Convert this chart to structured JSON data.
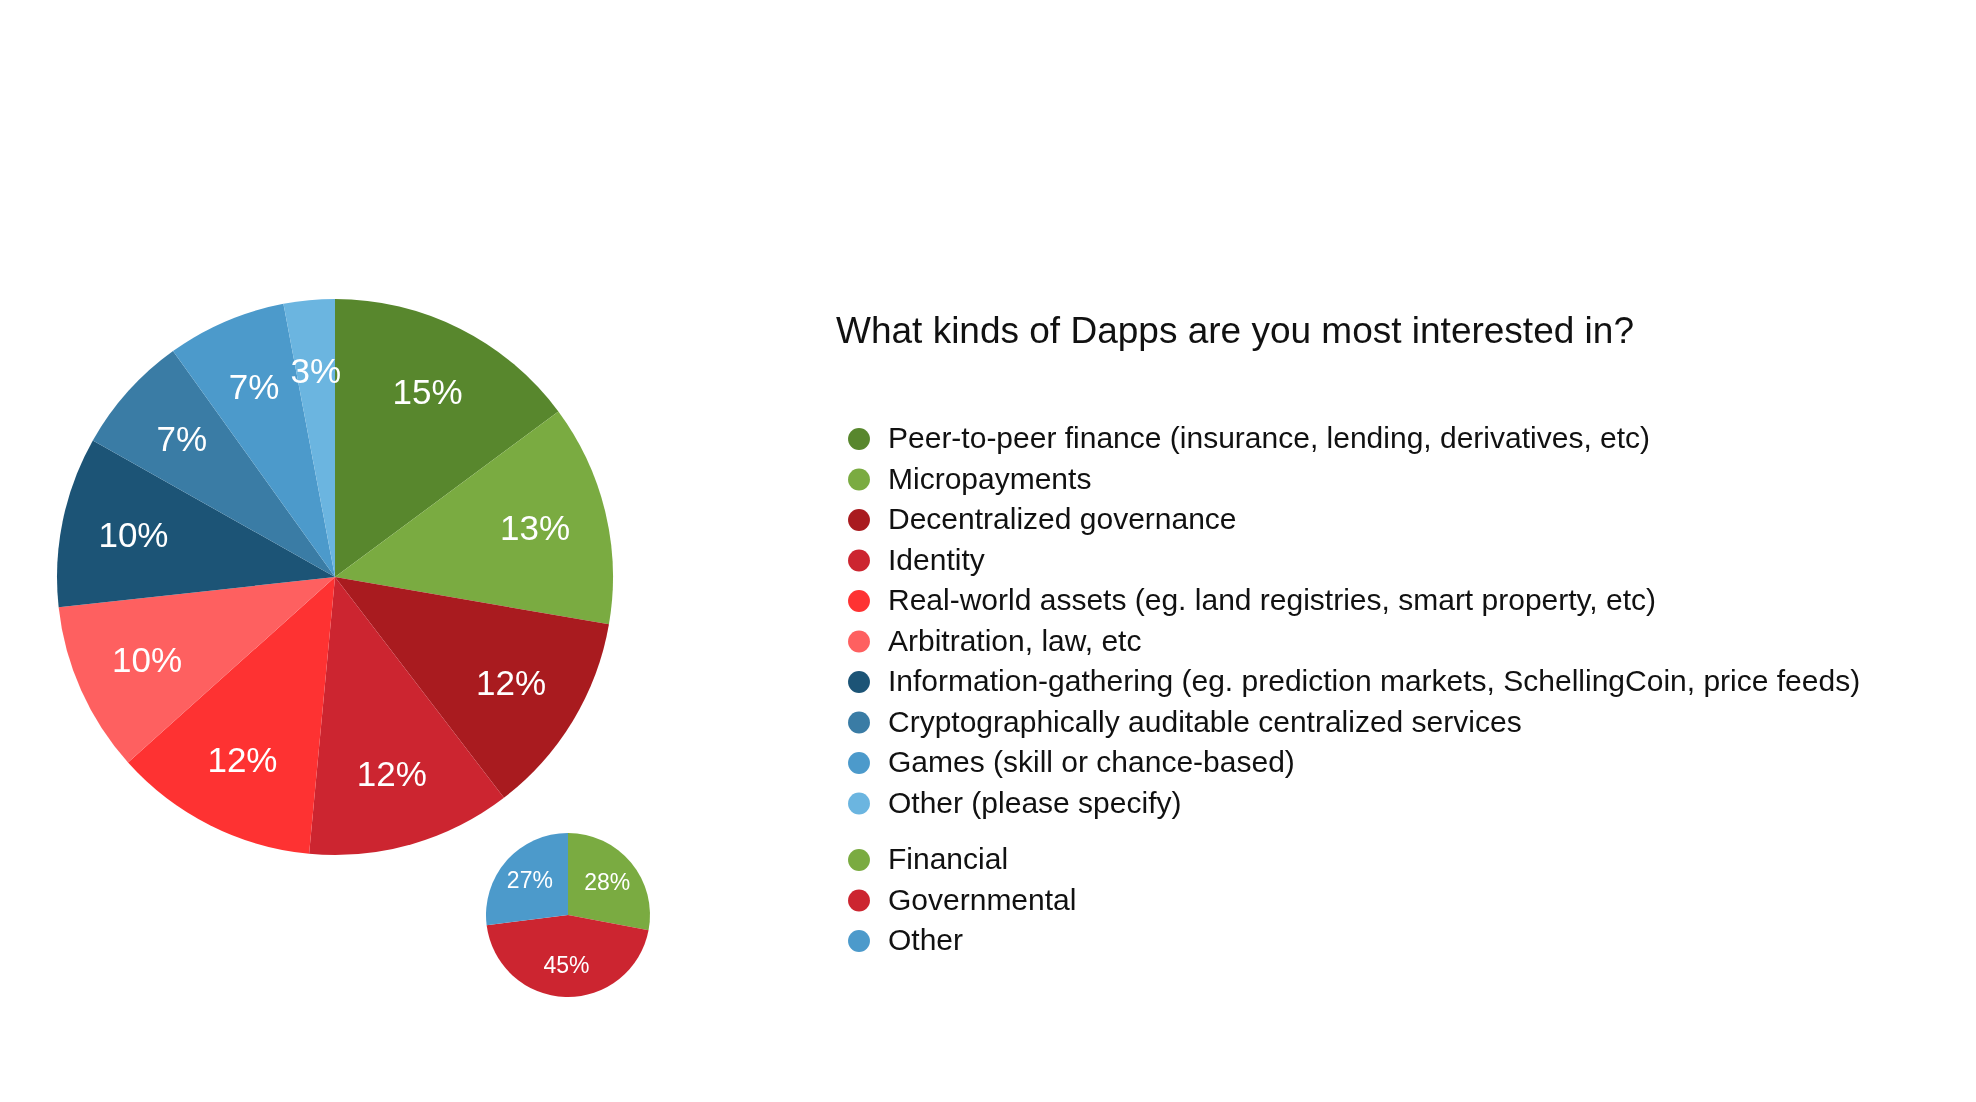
{
  "chart_data": [
    {
      "type": "pie",
      "title": "What kinds of Dapps are you most interested in?",
      "categories": [
        "Peer-to-peer finance (insurance, lending, derivatives, etc)",
        "Micropayments",
        "Decentralized governance",
        "Identity",
        "Real-world assets (eg. land registries, smart property, etc)",
        "Arbitration, law, etc",
        "Information-gathering (eg. prediction markets, SchellingCoin, price feeds)",
        "Cryptographically auditable centralized services",
        "Games (skill or chance-based)",
        "Other (please specify)"
      ],
      "values": [
        15,
        13,
        12,
        12,
        12,
        10,
        10,
        7,
        7,
        3
      ],
      "colors": [
        "#58872d",
        "#7aab41",
        "#a91b1f",
        "#cc2530",
        "#fe3232",
        "#fe6060",
        "#1c5476",
        "#3a7ca5",
        "#4c9acb",
        "#6bb5e0"
      ],
      "value_labels": [
        "15%",
        "13%",
        "12%",
        "12%",
        "12%",
        "10%",
        "10%",
        "7%",
        "7%",
        "3%"
      ],
      "legend": "right"
    },
    {
      "type": "pie",
      "categories": [
        "Financial",
        "Governmental",
        "Other"
      ],
      "values": [
        28,
        45,
        27
      ],
      "colors": [
        "#7aab41",
        "#cc2530",
        "#4c9acb"
      ],
      "value_labels": [
        "28%",
        "45%",
        "27%"
      ],
      "legend": "right"
    }
  ]
}
